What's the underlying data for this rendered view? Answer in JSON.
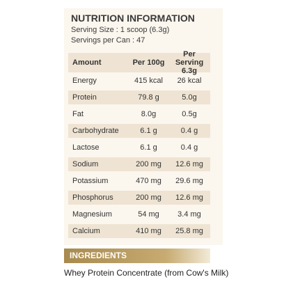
{
  "header": {
    "title": "NUTRITION INFORMATION",
    "serving_size": "Serving Size : 1 scoop (6.3g)",
    "servings": "Servings per Can : 47"
  },
  "table": {
    "columns": [
      "Amount",
      "Per 100g",
      "Per Serving 6.3g"
    ],
    "rows": [
      [
        "Energy",
        "415 kcal",
        "26 kcal"
      ],
      [
        "Protein",
        "79.8 g",
        "5.0g"
      ],
      [
        "Fat",
        "8.0g",
        "0.5g"
      ],
      [
        "Carbohydrate",
        "6.1 g",
        "0.4 g"
      ],
      [
        "Lactose",
        "6.1 g",
        "0.4 g"
      ],
      [
        "Sodium",
        "200 mg",
        "12.6 mg"
      ],
      [
        "Potassium",
        "470 mg",
        "29.6 mg"
      ],
      [
        "Phosphorus",
        "200 mg",
        "12.6 mg"
      ],
      [
        "Magnesium",
        "54 mg",
        "3.4 mg"
      ],
      [
        "Calcium",
        "410 mg",
        "25.8 mg"
      ]
    ]
  },
  "ingredients": {
    "title": "INGREDIENTS",
    "text": "Whey Protein Concentrate (from Cow's Milk)"
  }
}
